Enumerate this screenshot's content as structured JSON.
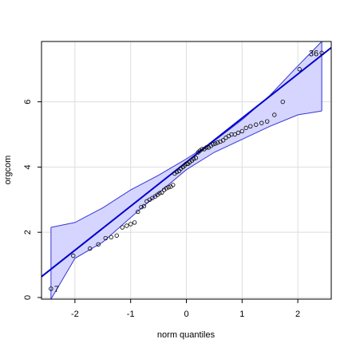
{
  "chart_data": {
    "type": "scatter",
    "subtype": "qq-plot",
    "title": "",
    "xlabel": "norm quantiles",
    "ylabel": "orgcom",
    "xlim": [
      -2.6,
      2.6
    ],
    "ylim": [
      -0.05,
      7.85
    ],
    "xticks": [
      -2,
      -1,
      0,
      1,
      2
    ],
    "yticks": [
      0,
      2,
      4,
      6
    ],
    "grid": true,
    "colors": {
      "points": "#000000",
      "reference_line": "#0000cd",
      "envelope_line": "#3535d6",
      "envelope_fill": "#d5d5ff",
      "grid": "#dddddd"
    },
    "reference_line": {
      "slope": 1.35,
      "intercept": 4.15
    },
    "envelope": {
      "x": [
        -2.43,
        -2.0,
        -1.5,
        -1.0,
        -0.5,
        0.0,
        0.5,
        1.0,
        1.5,
        2.0,
        2.43
      ],
      "upper": [
        2.15,
        2.3,
        2.75,
        3.3,
        3.75,
        4.25,
        4.8,
        5.45,
        6.2,
        7.1,
        7.85
      ],
      "lower": [
        -0.05,
        1.2,
        1.7,
        2.45,
        3.2,
        3.92,
        4.45,
        4.85,
        5.25,
        5.6,
        5.72
      ]
    },
    "points": {
      "x": [
        -2.43,
        -2.03,
        -1.73,
        -1.58,
        -1.45,
        -1.35,
        -1.25,
        -1.15,
        -1.07,
        -1.0,
        -0.93,
        -0.87,
        -0.81,
        -0.76,
        -0.71,
        -0.66,
        -0.61,
        -0.56,
        -0.52,
        -0.48,
        -0.44,
        -0.4,
        -0.36,
        -0.32,
        -0.28,
        -0.24,
        -0.21,
        -0.17,
        -0.13,
        -0.1,
        -0.06,
        -0.03,
        0.0,
        0.03,
        0.06,
        0.1,
        0.13,
        0.17,
        0.21,
        0.24,
        0.28,
        0.32,
        0.36,
        0.4,
        0.44,
        0.48,
        0.52,
        0.56,
        0.61,
        0.66,
        0.71,
        0.76,
        0.81,
        0.87,
        0.93,
        1.0,
        1.07,
        1.15,
        1.25,
        1.35,
        1.45,
        1.58,
        1.73,
        2.03,
        2.43
      ],
      "y": [
        0.27,
        1.28,
        1.5,
        1.63,
        1.82,
        1.85,
        1.9,
        2.15,
        2.2,
        2.25,
        2.3,
        2.63,
        2.77,
        2.8,
        2.95,
        3.0,
        3.05,
        3.1,
        3.15,
        3.2,
        3.22,
        3.3,
        3.35,
        3.38,
        3.4,
        3.45,
        3.8,
        3.85,
        3.88,
        3.95,
        4.0,
        4.05,
        4.1,
        4.1,
        4.15,
        4.2,
        4.25,
        4.28,
        4.45,
        4.5,
        4.55,
        4.55,
        4.6,
        4.6,
        4.65,
        4.7,
        4.72,
        4.75,
        4.78,
        4.82,
        4.9,
        4.95,
        5.0,
        5.0,
        5.05,
        5.1,
        5.2,
        5.25,
        5.3,
        5.35,
        5.4,
        5.6,
        6.0,
        7.0,
        7.5
      ]
    },
    "point_labels": [
      {
        "text": "7",
        "x": -2.43,
        "y": 0.27
      },
      {
        "text": "36",
        "x": 2.43,
        "y": 7.5
      }
    ]
  }
}
